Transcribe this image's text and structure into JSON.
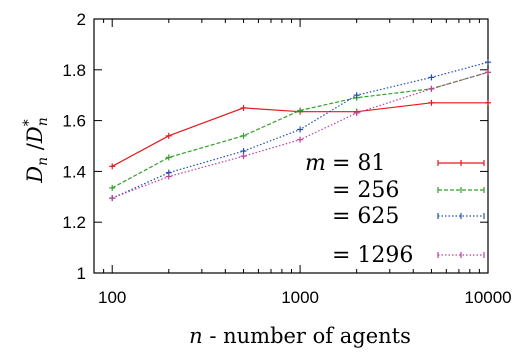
{
  "chart_data": {
    "type": "line",
    "xlabel": "n - number of agents",
    "ylabel": "D_n / D*_n",
    "x_scale": "log",
    "xlim": [
      80,
      10000
    ],
    "ylim": [
      1,
      2
    ],
    "x_ticks": [
      {
        "value": 100,
        "label": "100"
      },
      {
        "value": 1000,
        "label": "1000"
      },
      {
        "value": 10000,
        "label": "10000"
      }
    ],
    "y_ticks": [
      {
        "value": 1,
        "label": "1"
      },
      {
        "value": 1.2,
        "label": "1.2"
      },
      {
        "value": 1.4,
        "label": "1.4"
      },
      {
        "value": 1.6,
        "label": "1.6"
      },
      {
        "value": 1.8,
        "label": "1.8"
      },
      {
        "value": 2,
        "label": "2"
      }
    ],
    "grid": false,
    "legend_position": "bottom-right",
    "legend_prefix": "m",
    "x": [
      100,
      200,
      500,
      1000,
      2000,
      5000,
      10000
    ],
    "series": [
      {
        "name": "= 81",
        "color": "#e41a1c",
        "dash": "solid",
        "values": [
          1.42,
          1.54,
          1.65,
          1.635,
          1.635,
          1.67,
          1.67
        ]
      },
      {
        "name": "= 256",
        "color": "#33a02c",
        "dash": "dashed",
        "values": [
          1.335,
          1.455,
          1.54,
          1.64,
          1.69,
          1.725,
          1.79
        ]
      },
      {
        "name": "= 625",
        "color": "#1f4fb4",
        "dash": "dotted",
        "values": [
          1.295,
          1.395,
          1.48,
          1.565,
          1.7,
          1.77,
          1.83
        ]
      },
      {
        "name": "= 1296",
        "color": "#c0409a",
        "dash": "dotted",
        "values": [
          1.295,
          1.38,
          1.46,
          1.525,
          1.63,
          1.725,
          1.79
        ]
      }
    ]
  }
}
